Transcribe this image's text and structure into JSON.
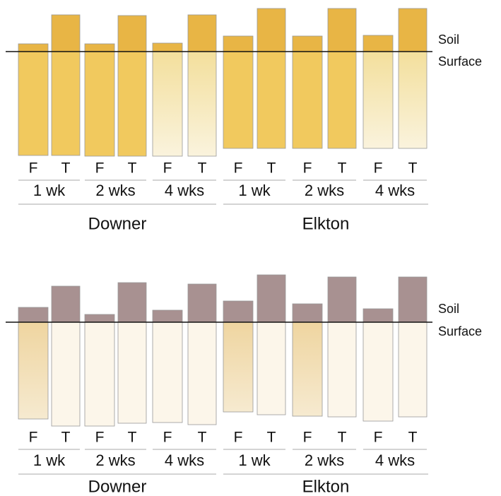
{
  "panels": [
    {
      "strip_labels": [
        "F",
        "T",
        "F",
        "T",
        "F",
        "T",
        "F",
        "T",
        "F",
        "T",
        "F",
        "T"
      ],
      "durations": [
        "1 wk",
        "2 wks",
        "4 wks",
        "1 wk",
        "2 wks",
        "4 wks"
      ],
      "sites": [
        "Downer",
        "Elkton"
      ],
      "line_labels": [
        "Soil",
        "Surface"
      ]
    },
    {
      "strip_labels": [
        "F",
        "T",
        "F",
        "T",
        "F",
        "T",
        "F",
        "T",
        "F",
        "T",
        "F",
        "T"
      ],
      "durations": [
        "1 wk",
        "2 wks",
        "4 wks",
        "1 wk",
        "2 wks",
        "4 wks"
      ],
      "sites": [
        "Downer",
        "Elkton"
      ],
      "line_labels": [
        "Soil",
        "Surface"
      ]
    }
  ]
}
